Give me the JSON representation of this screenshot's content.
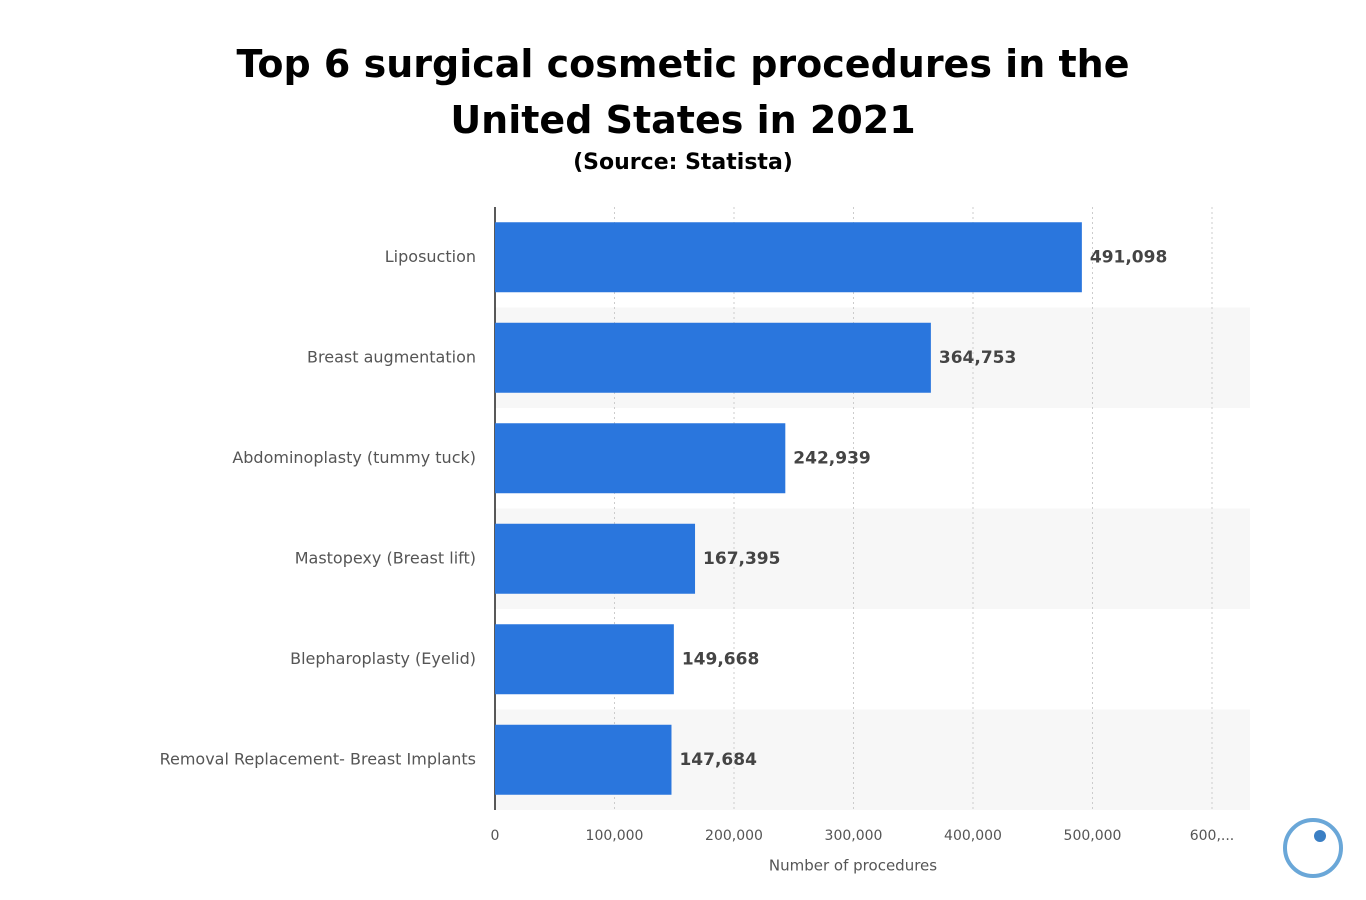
{
  "chart_data": {
    "type": "bar",
    "orientation": "horizontal",
    "title": "Top 6 surgical cosmetic procedures in the United States in 2021",
    "subtitle": "(Source: Statista)",
    "x_label": "Number of procedures",
    "categories": [
      "Liposuction",
      "Breast augmentation",
      "Abdominoplasty (tummy tuck)",
      "Mastopexy (Breast lift)",
      "Blepharoplasty (Eyelid)",
      "Removal Replacement- Breast Implants"
    ],
    "values": [
      491098,
      364753,
      242939,
      167395,
      149668,
      147684
    ],
    "value_labels": [
      "491,098",
      "364,753",
      "242,939",
      "167,395",
      "149,668",
      "147,684"
    ],
    "color": "#2a76dd",
    "xlim": [
      0,
      600000
    ],
    "xticks": [
      0,
      {
        "value": 100000,
        "label": "100,000"
      },
      {
        "value": 200000,
        "label": "200,000"
      },
      {
        "value": 300000,
        "label": "300,000"
      },
      {
        "value": 400000,
        "label": "400,000"
      },
      {
        "value": 500000,
        "label": "500,000"
      },
      {
        "value": 600000,
        "label": "600,..."
      }
    ],
    "grid": true
  }
}
